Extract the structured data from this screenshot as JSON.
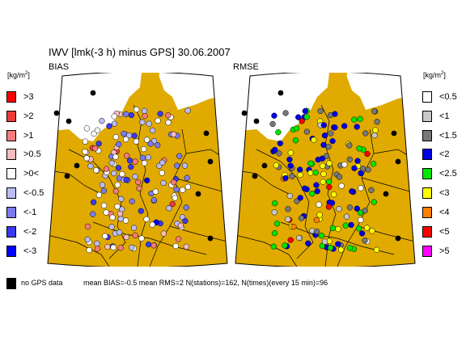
{
  "title": "IWV [lmk(-3 h) minus GPS] 30.06.2007",
  "left_panel": {
    "label": "BIAS",
    "unit_text": "kg/m",
    "unit_sup": "2",
    "legend": [
      {
        "label": ">3",
        "color": "#ff0000"
      },
      {
        "label": ">2",
        "color": "#ef3a3a"
      },
      {
        "label": ">1",
        "color": "#f67b7b"
      },
      {
        "label": ">0.5",
        "color": "#f9bcbc"
      },
      {
        "label": ">0<",
        "color": "#ffffff"
      },
      {
        "label": "<-0.5",
        "color": "#bcbcf6"
      },
      {
        "label": "<-1",
        "color": "#7b7bef"
      },
      {
        "label": "<-2",
        "color": "#3a3af3"
      },
      {
        "label": "<-3",
        "color": "#0000ff"
      }
    ]
  },
  "right_panel": {
    "label": "RMSE",
    "unit_text": "kg/m",
    "unit_sup": "2",
    "legend": [
      {
        "label": "<0.5",
        "color": "#ffffff"
      },
      {
        "label": "<1",
        "color": "#c8c8c8"
      },
      {
        "label": "<1.5",
        "color": "#787878"
      },
      {
        "label": "<2",
        "color": "#0000e6"
      },
      {
        "label": "<2.5",
        "color": "#00e600"
      },
      {
        "label": "<3",
        "color": "#ffff00"
      },
      {
        "label": "<4",
        "color": "#ff8000"
      },
      {
        "label": "<5",
        "color": "#ff0000"
      },
      {
        "label": ">5",
        "color": "#ff00ff"
      }
    ]
  },
  "footer": {
    "no_data_label": "no GPS data",
    "no_data_color": "#000000",
    "stats": "mean BIAS=-0.5  mean RMS=2  N(stations)=162, N(times)(every 15 min)=96"
  },
  "map_colors": {
    "land": "#e0aa00",
    "sea": "#ffffff",
    "border": "#000000"
  }
}
